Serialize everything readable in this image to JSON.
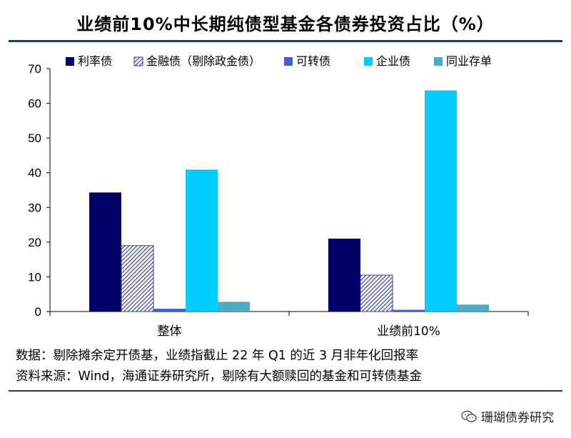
{
  "title": "业绩前10%中长期纯债型基金各债券投资占比（%）",
  "colors": {
    "rate_bond": "#000066",
    "financial_bond": "#7a82c2",
    "convertible_bond": "#3d5ce0",
    "corporate_bond": "#00ccff",
    "ncd": "#4bacc6",
    "title_rule": "#1f3a73"
  },
  "chart_data": {
    "type": "bar",
    "categories": [
      "整体",
      "业绩前10%"
    ],
    "series": [
      {
        "name": "利率债",
        "values": [
          34.3,
          21.0
        ],
        "color": "#000066",
        "pattern": "solid"
      },
      {
        "name": "金融债（剔除政金债）",
        "values": [
          19.0,
          10.5
        ],
        "color": "#7a82c2",
        "pattern": "hatch"
      },
      {
        "name": "可转债",
        "values": [
          0.8,
          0.5
        ],
        "color": "#3d5ce0",
        "pattern": "solid"
      },
      {
        "name": "企业债",
        "values": [
          40.9,
          63.7
        ],
        "color": "#00ccff",
        "pattern": "solid"
      },
      {
        "name": "同业存单",
        "values": [
          2.8,
          2.0
        ],
        "color": "#4bacc6",
        "pattern": "solid"
      }
    ],
    "ylim": [
      0,
      70
    ],
    "yticks": [
      0,
      10,
      20,
      30,
      40,
      50,
      60,
      70
    ],
    "legend_position": "top",
    "grid": false
  },
  "notes": {
    "data_note": "数据：剔除摊余定开债基，业绩指截止 22 年 Q1 的近 3 月非年化回报率",
    "source": "资料来源：Wind，海通证券研究所，剔除有大额赎回的基金和可转债基金"
  },
  "brand": {
    "name": "珊瑚债券研究",
    "icon": "wechat-icon"
  }
}
